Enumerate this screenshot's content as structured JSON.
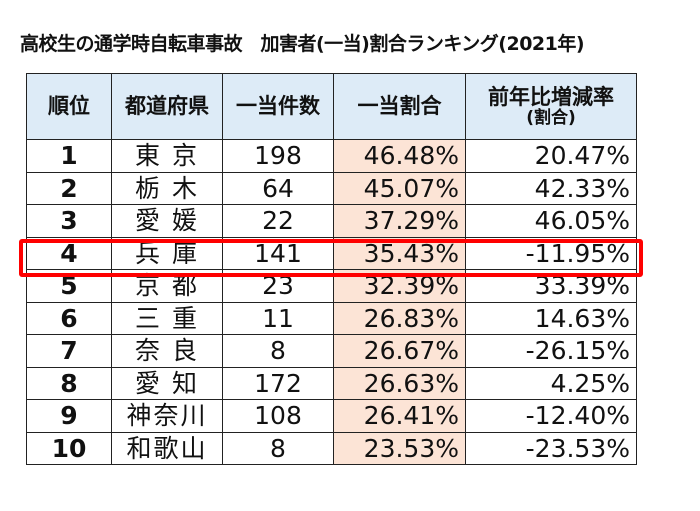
{
  "title": "高校生の通学時自転車事故　加害者(一当)割合ランキング(2021年)",
  "table": {
    "headers": {
      "rank": "順位",
      "prefecture": "都道府県",
      "count": "一当件数",
      "ratio": "一当割合",
      "change": "前年比増減率",
      "change_sub": "(割合)"
    },
    "rows": [
      {
        "rank": "1",
        "prefecture": "東 京",
        "count": "198",
        "ratio": "46.48%",
        "change": "20.47%"
      },
      {
        "rank": "2",
        "prefecture": "栃 木",
        "count": "64",
        "ratio": "45.07%",
        "change": "42.33%"
      },
      {
        "rank": "3",
        "prefecture": "愛 媛",
        "count": "22",
        "ratio": "37.29%",
        "change": "46.05%"
      },
      {
        "rank": "4",
        "prefecture": "兵 庫",
        "count": "141",
        "ratio": "35.43%",
        "change": "-11.95%"
      },
      {
        "rank": "5",
        "prefecture": "京 都",
        "count": "23",
        "ratio": "32.39%",
        "change": "33.39%"
      },
      {
        "rank": "6",
        "prefecture": "三 重",
        "count": "11",
        "ratio": "26.83%",
        "change": "14.63%"
      },
      {
        "rank": "7",
        "prefecture": "奈 良",
        "count": "8",
        "ratio": "26.67%",
        "change": "-26.15%"
      },
      {
        "rank": "8",
        "prefecture": "愛 知",
        "count": "172",
        "ratio": "26.63%",
        "change": "4.25%"
      },
      {
        "rank": "9",
        "prefecture": "神奈川",
        "count": "108",
        "ratio": "26.41%",
        "change": "-12.40%"
      },
      {
        "rank": "10",
        "prefecture": "和歌山",
        "count": "8",
        "ratio": "23.53%",
        "change": "-23.53%"
      }
    ],
    "highlighted_rank": "4"
  },
  "colors": {
    "header_bg": "#DDEBF7",
    "ratio_bg": "#FCE4D6",
    "highlight_border": "#FF0000"
  }
}
